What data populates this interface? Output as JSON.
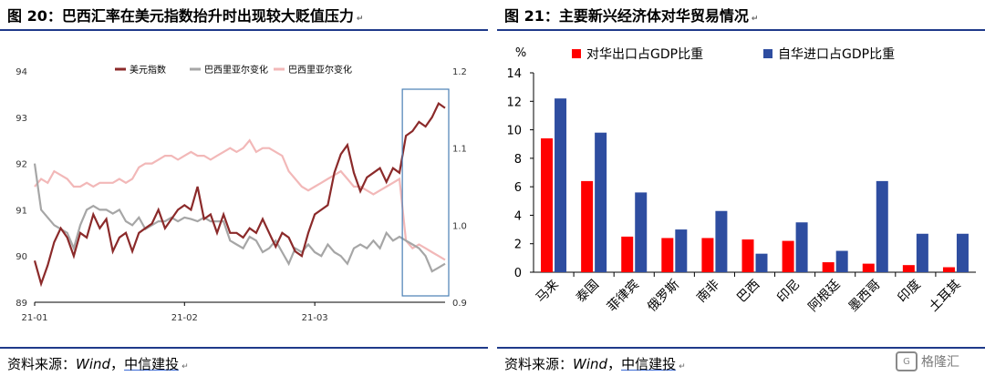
{
  "left": {
    "title": "图 20：巴西汇率在美元指数抬升时出现较大贬值压力",
    "source": "资料来源：",
    "source_wind": "Wind",
    "source_sep": "，",
    "source_org": "中信建投",
    "legend": [
      "美元指数",
      "巴西里亚尔变化",
      "巴西里亚尔变化"
    ]
  },
  "right": {
    "title": "图 21：主要新兴经济体对华贸易情况",
    "source": "资料来源：",
    "source_wind": "Wind",
    "source_sep": "，",
    "source_org": "中信建投",
    "unit": "%",
    "legend": [
      "对华出口占GDP比重",
      "自华进口占GDP比重"
    ]
  },
  "watermark": "格隆汇",
  "colors": {
    "usd": "#8b2a2a",
    "brl_gray": "#a6a6a6",
    "brl_pink": "#f2b8b8",
    "export": "#ff0000",
    "import": "#2e4da0",
    "highlight": "#4a7fb5"
  },
  "chart_data": [
    {
      "type": "line",
      "xticks": [
        "21-01",
        "21-02",
        "21-03"
      ],
      "y_left": {
        "ticks": [
          89,
          90,
          91,
          92,
          93,
          94
        ],
        "range": [
          89,
          94
        ]
      },
      "y_right": {
        "ticks": [
          "0.9",
          "1.0",
          "1.1",
          "1.2"
        ],
        "range": [
          0.9,
          1.2
        ]
      },
      "series": [
        {
          "name": "美元指数",
          "axis": "left",
          "values": [
            89.9,
            89.4,
            89.8,
            90.3,
            90.6,
            90.4,
            90.0,
            90.5,
            90.4,
            90.9,
            90.6,
            90.8,
            90.1,
            90.4,
            90.5,
            90.1,
            90.5,
            90.6,
            90.7,
            91.0,
            90.6,
            90.8,
            91.0,
            91.1,
            91.0,
            91.5,
            90.8,
            90.9,
            90.5,
            90.9,
            90.5,
            90.5,
            90.4,
            90.6,
            90.5,
            90.8,
            90.5,
            90.2,
            90.5,
            90.4,
            90.1,
            90.0,
            90.5,
            90.9,
            91.0,
            91.1,
            91.8,
            92.2,
            92.4,
            91.8,
            91.4,
            91.7,
            91.8,
            91.9,
            91.6,
            91.9,
            91.8,
            92.6,
            92.7,
            92.9,
            92.8,
            93.0,
            93.3,
            93.2
          ]
        },
        {
          "name": "巴西里亚尔变化",
          "axis": "right",
          "values": [
            1.08,
            1.02,
            1.01,
            1.0,
            0.995,
            0.99,
            0.97,
            1.0,
            1.02,
            1.025,
            1.02,
            1.02,
            1.015,
            1.02,
            1.005,
            1.0,
            1.01,
            0.995,
            1.0,
            1.005,
            1.005,
            1.01,
            1.005,
            1.01,
            1.008,
            1.005,
            1.01,
            1.005,
            1.005,
            1.005,
            0.98,
            0.975,
            0.97,
            0.985,
            0.98,
            0.965,
            0.97,
            0.98,
            0.965,
            0.95,
            0.97,
            0.965,
            0.975,
            0.965,
            0.96,
            0.975,
            0.965,
            0.96,
            0.95,
            0.97,
            0.975,
            0.97,
            0.98,
            0.97,
            0.99,
            0.98,
            0.985,
            0.98,
            0.975,
            0.97,
            0.96,
            0.94,
            0.945,
            0.95
          ]
        },
        {
          "name": "巴西里亚尔变化",
          "axis": "right",
          "values": [
            1.05,
            1.06,
            1.055,
            1.07,
            1.065,
            1.06,
            1.05,
            1.05,
            1.055,
            1.05,
            1.055,
            1.055,
            1.055,
            1.06,
            1.055,
            1.06,
            1.075,
            1.08,
            1.08,
            1.085,
            1.09,
            1.09,
            1.085,
            1.09,
            1.095,
            1.09,
            1.09,
            1.085,
            1.09,
            1.095,
            1.1,
            1.095,
            1.1,
            1.11,
            1.095,
            1.1,
            1.1,
            1.095,
            1.09,
            1.07,
            1.06,
            1.05,
            1.045,
            1.05,
            1.055,
            1.06,
            1.065,
            1.07,
            1.06,
            1.05,
            1.05,
            1.045,
            1.04,
            1.045,
            1.05,
            1.055,
            1.06,
            0.98,
            0.97,
            0.975,
            0.97,
            0.965,
            0.96,
            0.955
          ]
        }
      ],
      "highlight_range": [
        57,
        63
      ]
    },
    {
      "type": "bar",
      "categories": [
        "马来",
        "泰国",
        "菲律宾",
        "俄罗斯",
        "南非",
        "巴西",
        "印尼",
        "阿根廷",
        "墨西哥",
        "印度",
        "土耳其"
      ],
      "series": [
        {
          "name": "对华出口占GDP比重",
          "values": [
            9.4,
            6.4,
            2.5,
            2.4,
            2.4,
            2.3,
            2.2,
            0.7,
            0.6,
            0.5,
            0.35
          ]
        },
        {
          "name": "自华进口占GDP比重",
          "values": [
            12.2,
            9.8,
            5.6,
            3.0,
            4.3,
            1.3,
            3.5,
            1.5,
            6.4,
            2.7,
            2.7
          ]
        }
      ],
      "yticks": [
        0,
        2,
        4,
        6,
        8,
        10,
        12,
        14
      ],
      "ylim": [
        0,
        14
      ]
    }
  ]
}
